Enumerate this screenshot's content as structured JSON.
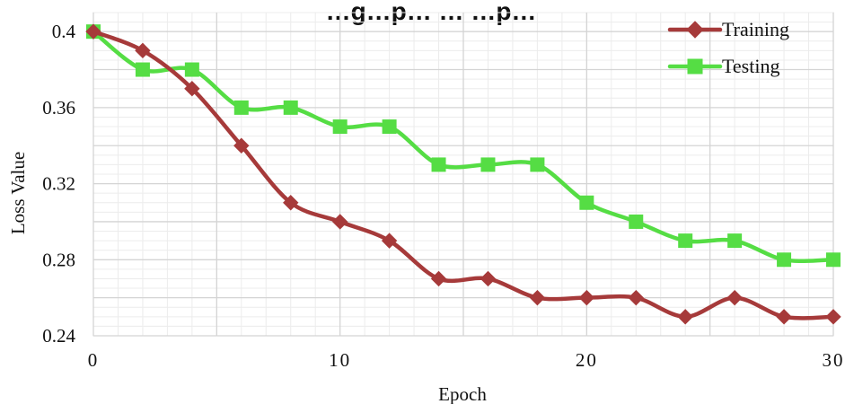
{
  "chart_data": {
    "type": "line",
    "title": "…g…p… … …p…",
    "xlabel": "Epoch",
    "ylabel": "Loss Value",
    "xlim": [
      0,
      30
    ],
    "ylim": [
      0.24,
      0.41
    ],
    "x_ticks": [
      0,
      10,
      20,
      30
    ],
    "x_tick_labels": [
      "0",
      "10",
      "20",
      "30"
    ],
    "y_ticks": [
      0.24,
      0.28,
      0.32,
      0.36,
      0.4
    ],
    "y_tick_labels": [
      "0.24",
      "0.28",
      "0.32",
      "0.36",
      "0.4"
    ],
    "grid": true,
    "legend_position": "top-right",
    "x": [
      0,
      2,
      4,
      6,
      8,
      10,
      12,
      14,
      16,
      18,
      20,
      22,
      24,
      26,
      28,
      30
    ],
    "series": [
      {
        "name": "Training",
        "color": "#A63A3A",
        "marker": "diamond",
        "values": [
          0.4,
          0.39,
          0.37,
          0.34,
          0.31,
          0.3,
          0.29,
          0.27,
          0.27,
          0.26,
          0.26,
          0.26,
          0.25,
          0.26,
          0.25,
          0.25
        ]
      },
      {
        "name": "Testing",
        "color": "#55DD44",
        "marker": "square",
        "values": [
          0.4,
          0.38,
          0.38,
          0.36,
          0.36,
          0.35,
          0.35,
          0.33,
          0.33,
          0.33,
          0.31,
          0.3,
          0.29,
          0.29,
          0.28,
          0.28
        ]
      }
    ]
  }
}
